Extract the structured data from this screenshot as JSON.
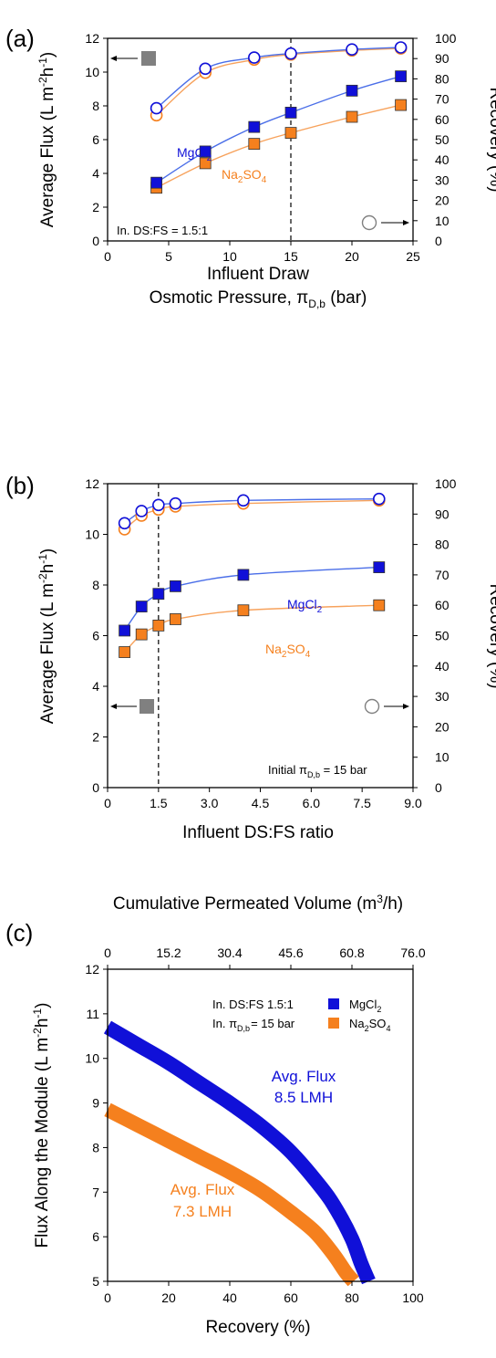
{
  "colors": {
    "mgcl2": "#1010d8",
    "na2so4": "#f5801e",
    "mgcl2_light": "#4a6ee8",
    "na2so4_light": "#f7a25c",
    "legend_square": "#808080",
    "legend_circle": "#808080"
  },
  "chart_data": [
    {
      "type": "scatter",
      "panel": "(a)",
      "xlabel": "Influent Draw",
      "xlabel2": "Osmotic Pressure, π",
      "xlabel2_sub": "D,b",
      "xlabel2_unit": " (bar)",
      "ylabel": "Average Flux  (L m",
      "ylabel_sup1": "-2",
      "ylabel_h": "h",
      "ylabel_sup2": "-1",
      "ylabel_close": ")",
      "y2label": "Recovery  (%)",
      "xlim": [
        0,
        25
      ],
      "ylim": [
        0,
        12
      ],
      "y2lim": [
        0,
        100
      ],
      "xticks": [
        "0",
        "5",
        "10",
        "15",
        "20",
        "25"
      ],
      "yticks": [
        "0",
        "2",
        "4",
        "6",
        "8",
        "10",
        "12"
      ],
      "y2ticks": [
        "0",
        "10",
        "20",
        "30",
        "40",
        "50",
        "60",
        "70",
        "80",
        "90",
        "100"
      ],
      "x": [
        4,
        8,
        12,
        15,
        20,
        24
      ],
      "series": [
        {
          "name": "MgCl",
          "name_sub": "2",
          "axis": "left",
          "values": [
            3.45,
            5.3,
            6.75,
            7.6,
            8.9,
            9.75
          ]
        },
        {
          "name": "Na",
          "name_sub": "2",
          "name_rest": "SO",
          "name_sub2": "4",
          "axis": "left",
          "values": [
            3.15,
            4.6,
            5.75,
            6.4,
            7.35,
            8.05
          ]
        },
        {
          "axis": "right",
          "values": [
            65.5,
            85,
            90.5,
            92.5,
            94.5,
            95.5
          ]
        },
        {
          "axis": "right",
          "values": [
            62,
            83,
            89.5,
            92,
            94,
            95
          ]
        }
      ],
      "vline_x": 15,
      "annotation": "In. DS:FS = 1.5:1"
    },
    {
      "type": "scatter",
      "panel": "(b)",
      "xlabel": "Influent DS:FS ratio",
      "ylabel": "Average Flux  (L m",
      "ylabel_sup1": "-2",
      "ylabel_h": "h",
      "ylabel_sup2": "-1",
      "ylabel_close": ")",
      "y2label": "Recovery  (%)",
      "xlim": [
        0,
        9
      ],
      "ylim": [
        0,
        12
      ],
      "y2lim": [
        0,
        100
      ],
      "xticks": [
        "0",
        "1.5",
        "3.0",
        "4.5",
        "6.0",
        "7.5",
        "9.0"
      ],
      "yticks": [
        "0",
        "2",
        "4",
        "6",
        "8",
        "10",
        "12"
      ],
      "y2ticks": [
        "0",
        "10",
        "20",
        "30",
        "40",
        "50",
        "60",
        "70",
        "80",
        "90",
        "100"
      ],
      "x": [
        0.5,
        1.0,
        1.5,
        2.0,
        4.0,
        8.0
      ],
      "series": [
        {
          "name": "MgCl",
          "name_sub": "2",
          "axis": "left",
          "values": [
            6.2,
            7.15,
            7.65,
            7.95,
            8.4,
            8.7
          ]
        },
        {
          "name": "Na",
          "name_sub": "2",
          "name_rest": "SO",
          "name_sub2": "4",
          "axis": "left",
          "values": [
            5.35,
            6.05,
            6.4,
            6.65,
            7.0,
            7.2
          ]
        },
        {
          "axis": "right",
          "values": [
            87,
            91,
            93,
            93.5,
            94.5,
            95
          ]
        },
        {
          "axis": "right",
          "values": [
            85,
            89.5,
            91.5,
            92.5,
            93.5,
            94.5
          ]
        }
      ],
      "vline_x": 1.5,
      "annotation": "Initial π",
      "annotation_sub": "D,b",
      "annotation_rest": " = 15 bar"
    },
    {
      "type": "line",
      "panel": "(c)",
      "xlabel": "Recovery  (%)",
      "x2label": "Cumulative Permeated Volume  (m",
      "x2label_sup": "3",
      "x2label_rest": "/h)",
      "ylabel": "Flux Along the Module (L m",
      "ylabel_sup1": "-2",
      "ylabel_h": "h",
      "ylabel_sup2": "-1",
      "ylabel_close": ")",
      "xlim": [
        0,
        100
      ],
      "ylim": [
        5,
        12
      ],
      "xticks": [
        "0",
        "20",
        "40",
        "60",
        "80",
        "100"
      ],
      "x2ticks": [
        "0",
        "15.2",
        "30.4",
        "45.6",
        "60.8",
        "76.0"
      ],
      "yticks": [
        "5",
        "6",
        "7",
        "8",
        "9",
        "10",
        "11",
        "12"
      ],
      "series": [
        {
          "name": "MgCl",
          "name_sub": "2",
          "x": [
            0,
            10,
            20,
            30,
            40,
            50,
            60,
            70,
            75,
            80,
            83,
            85.5
          ],
          "values": [
            10.7,
            10.3,
            9.9,
            9.45,
            9.0,
            8.5,
            7.9,
            7.1,
            6.6,
            5.95,
            5.4,
            5.0
          ]
        },
        {
          "name": "Na",
          "name_sub": "2",
          "name_rest": "SO",
          "name_sub2": "4",
          "x": [
            0,
            10,
            20,
            30,
            40,
            50,
            60,
            68,
            74,
            78,
            80.5
          ],
          "values": [
            8.85,
            8.5,
            8.15,
            7.8,
            7.45,
            7.05,
            6.55,
            6.1,
            5.6,
            5.2,
            5.0
          ]
        }
      ],
      "legend": {
        "line1": "In. DS:FS  1.5:1",
        "line2a": "In. π",
        "line2_sub": "D,b",
        "line2b": "= 15 bar"
      },
      "annotations": [
        {
          "line1": "Avg. Flux",
          "line2": "8.5 LMH",
          "series": 0
        },
        {
          "line1": "Avg. Flux",
          "line2": "7.3 LMH",
          "series": 1
        }
      ]
    }
  ]
}
